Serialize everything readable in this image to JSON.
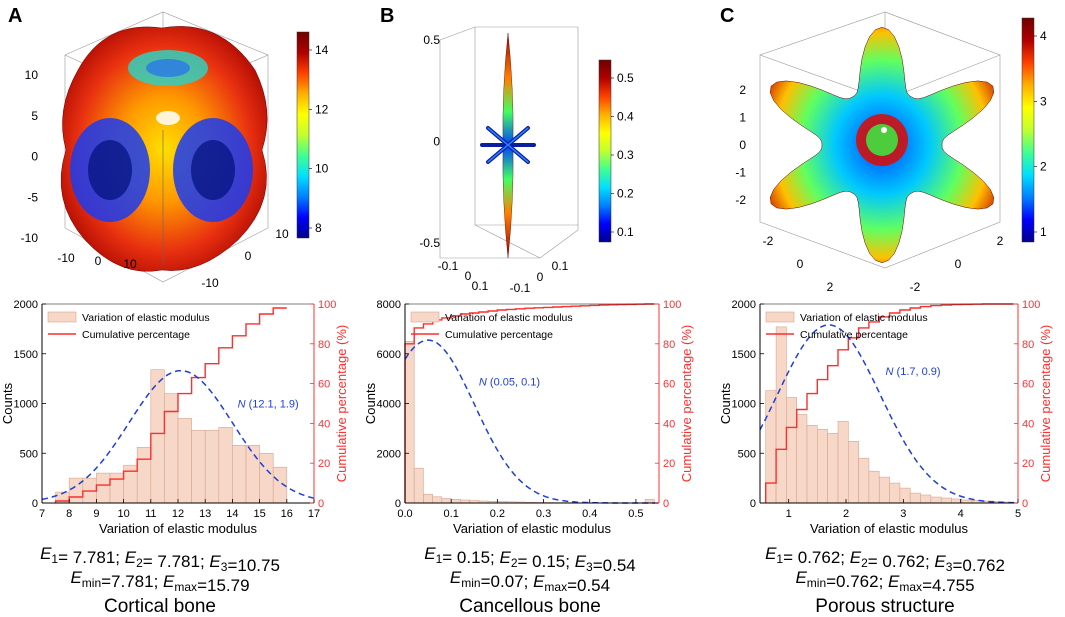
{
  "colors": {
    "hist_fill": "#f6d7c8",
    "hist_edge": "#d9a58c",
    "cumulative": "#ff2d2d",
    "normal_fit": "#1f3fd8",
    "axis": "#000000",
    "right_axis": "#ff3030"
  },
  "colormap": [
    "#00008b",
    "#0000ff",
    "#0080ff",
    "#00e0ff",
    "#40ff90",
    "#c0ff30",
    "#ffff00",
    "#ffb000",
    "#ff4000",
    "#b00000",
    "#700000"
  ],
  "panels": [
    {
      "letter": "A",
      "surface": {
        "shape": "cortical-bone-surface",
        "axis_ticks_left": [
          "10",
          "5",
          "0",
          "-5",
          "-10"
        ],
        "axis_ticks_bottom_left": [
          "-10",
          "0",
          "10"
        ],
        "axis_ticks_bottom_right": [
          "10",
          "0",
          "-10"
        ],
        "colorbar_ticks": [
          "14",
          "12",
          "10",
          "8"
        ]
      },
      "chart_data": {
        "type": "bar",
        "xlabel": "Variation of elastic modulus",
        "ylabel": "Counts",
        "y2label": "Cumulative percentage (%)",
        "xlim": [
          7,
          17
        ],
        "ylim": [
          0,
          2000
        ],
        "y2lim": [
          0,
          100
        ],
        "x_ticks": [
          "7",
          "8",
          "9",
          "10",
          "11",
          "12",
          "13",
          "14",
          "15",
          "16",
          "17"
        ],
        "y_ticks": [
          "0",
          "500",
          "1000",
          "1500",
          "2000"
        ],
        "y2_ticks": [
          "0",
          "20",
          "40",
          "60",
          "80",
          "100"
        ],
        "legend": [
          "Variation of elastic modulus",
          "Cumulative percentage"
        ],
        "annotation": {
          "italic": "N",
          "text": " (12.1, 1.9)"
        },
        "bin_start": 7.5,
        "bin_width": 0.5,
        "counts": [
          110,
          250,
          250,
          300,
          300,
          380,
          560,
          1340,
          1100,
          850,
          730,
          730,
          760,
          580,
          580,
          500,
          360
        ],
        "cumulative": [
          1,
          3,
          6,
          9,
          12,
          16,
          22,
          35,
          46,
          55,
          63,
          70,
          78,
          84,
          90,
          95,
          98
        ],
        "normal": {
          "mean": 12.1,
          "sd": 1.9,
          "peak": 1330
        }
      },
      "equations": {
        "line1": [
          {
            "t": "E",
            "i": true
          },
          {
            "t": "1",
            "sub": true
          },
          {
            "t": "= 7.781;  "
          },
          {
            "t": "E",
            "i": true
          },
          {
            "t": "2",
            "sub": true
          },
          {
            "t": "= 7.781; "
          },
          {
            "t": "E",
            "i": true
          },
          {
            "t": "3",
            "sub": true
          },
          {
            "t": "=10.75"
          }
        ],
        "line2": [
          {
            "t": "E",
            "i": true
          },
          {
            "t": "min",
            "sub": true
          },
          {
            "t": "=7.781; "
          },
          {
            "t": "E",
            "i": true
          },
          {
            "t": "max",
            "sub": true
          },
          {
            "t": "=15.79"
          }
        ]
      },
      "caption": "Cortical bone"
    },
    {
      "letter": "B",
      "surface": {
        "shape": "cancellous-bone-surface",
        "axis_ticks_left": [
          "0.5",
          "0",
          "-0.5"
        ],
        "axis_ticks_bottom_left": [
          "-0.1",
          "0",
          "0.1"
        ],
        "axis_ticks_bottom_right": [
          "0.1",
          "0",
          "-0.1"
        ],
        "colorbar_ticks": [
          "0.5",
          "0.4",
          "0.3",
          "0.2",
          "0.1"
        ]
      },
      "chart_data": {
        "type": "bar",
        "xlabel": "Variation of elastic modulus",
        "ylabel": "Counts",
        "y2label": "Cumulative percentage (%)",
        "xlim": [
          0,
          0.55
        ],
        "ylim": [
          0,
          8000
        ],
        "y2lim": [
          0,
          100
        ],
        "x_ticks": [
          "0.0",
          "0.1",
          "0.2",
          "0.3",
          "0.4",
          "0.5"
        ],
        "y_ticks": [
          "0",
          "2000",
          "4000",
          "6000",
          "8000"
        ],
        "y2_ticks": [
          "0",
          "20",
          "40",
          "60",
          "80",
          "100"
        ],
        "legend": [
          "Variation of elastic modulus",
          "Cumulative percentage"
        ],
        "annotation": {
          "italic": "N",
          "text": " (0.05, 0.1)"
        },
        "bin_start": 0.0,
        "bin_width": 0.02,
        "counts": [
          6500,
          1400,
          350,
          250,
          180,
          150,
          120,
          100,
          80,
          70,
          60,
          50,
          40,
          30,
          25,
          20,
          15,
          15,
          10,
          10,
          10,
          10,
          10,
          10,
          10,
          10,
          150
        ],
        "cumulative": [
          80,
          88,
          90,
          92,
          93,
          94,
          95,
          95.5,
          96,
          96.5,
          97,
          97.3,
          97.6,
          97.9,
          98.1,
          98.3,
          98.5,
          98.7,
          98.9,
          99.1,
          99.3,
          99.5,
          99.6,
          99.7,
          99.8,
          99.9,
          100
        ],
        "normal": {
          "mean": 0.05,
          "sd": 0.1,
          "peak": 6550
        }
      },
      "equations": {
        "line1": [
          {
            "t": "E",
            "i": true
          },
          {
            "t": "1",
            "sub": true
          },
          {
            "t": "= 0.15;  "
          },
          {
            "t": "E",
            "i": true
          },
          {
            "t": "2",
            "sub": true
          },
          {
            "t": "= 0.15; "
          },
          {
            "t": "E",
            "i": true
          },
          {
            "t": "3",
            "sub": true
          },
          {
            "t": "=0.54"
          }
        ],
        "line2": [
          {
            "t": "E",
            "i": true
          },
          {
            "t": "min",
            "sub": true
          },
          {
            "t": "=0.07; "
          },
          {
            "t": "E",
            "i": true
          },
          {
            "t": "max",
            "sub": true
          },
          {
            "t": "=0.54"
          }
        ]
      },
      "caption": "Cancellous bone"
    },
    {
      "letter": "C",
      "surface": {
        "shape": "porous-structure-surface",
        "axis_ticks_left": [
          "2",
          "1",
          "0",
          "-1",
          "-2"
        ],
        "axis_ticks_bottom_left": [
          "-2",
          "0",
          "2"
        ],
        "axis_ticks_bottom_right": [
          "2",
          "0",
          "-2"
        ],
        "colorbar_ticks": [
          "4",
          "3",
          "2",
          "1"
        ]
      },
      "chart_data": {
        "type": "bar",
        "xlabel": "Variation of elastic modulus",
        "ylabel": "Counts",
        "y2label": "Cumulative percentage (%)",
        "xlim": [
          0.5,
          5
        ],
        "ylim": [
          0,
          2000
        ],
        "y2lim": [
          0,
          100
        ],
        "x_ticks": [
          "1",
          "2",
          "3",
          "4",
          "5"
        ],
        "y_ticks": [
          "0",
          "500",
          "1000",
          "1500",
          "2000"
        ],
        "y2_ticks": [
          "0",
          "20",
          "40",
          "60",
          "80",
          "100"
        ],
        "legend": [
          "Variation of elastic modulus",
          "Cumulative percentage"
        ],
        "annotation": {
          "italic": "N",
          "text": " (1.7, 0.9)"
        },
        "bin_start": 0.6,
        "bin_width": 0.18,
        "counts": [
          1130,
          1770,
          1060,
          890,
          780,
          740,
          700,
          820,
          620,
          450,
          320,
          260,
          200,
          150,
          100,
          80,
          60,
          50,
          40,
          30,
          25,
          20,
          15,
          10
        ],
        "cumulative": [
          10,
          27,
          38,
          47,
          55,
          62,
          69,
          77,
          83,
          88,
          91,
          93.5,
          95.5,
          97,
          98,
          98.7,
          99.2,
          99.5,
          99.7,
          99.8,
          99.9,
          100,
          100,
          100
        ],
        "normal": {
          "mean": 1.7,
          "sd": 0.9,
          "peak": 1790
        }
      },
      "equations": {
        "line1": [
          {
            "t": "E",
            "i": true
          },
          {
            "t": "1",
            "sub": true
          },
          {
            "t": "= 0.762;  "
          },
          {
            "t": "E",
            "i": true
          },
          {
            "t": "2",
            "sub": true
          },
          {
            "t": "= 0.762; "
          },
          {
            "t": "E",
            "i": true
          },
          {
            "t": "3",
            "sub": true
          },
          {
            "t": "=0.762"
          }
        ],
        "line2": [
          {
            "t": "E",
            "i": true
          },
          {
            "t": "min",
            "sub": true
          },
          {
            "t": "=0.762; "
          },
          {
            "t": "E",
            "i": true
          },
          {
            "t": "max",
            "sub": true
          },
          {
            "t": "=4.755"
          }
        ]
      },
      "caption": "Porous structure"
    }
  ]
}
